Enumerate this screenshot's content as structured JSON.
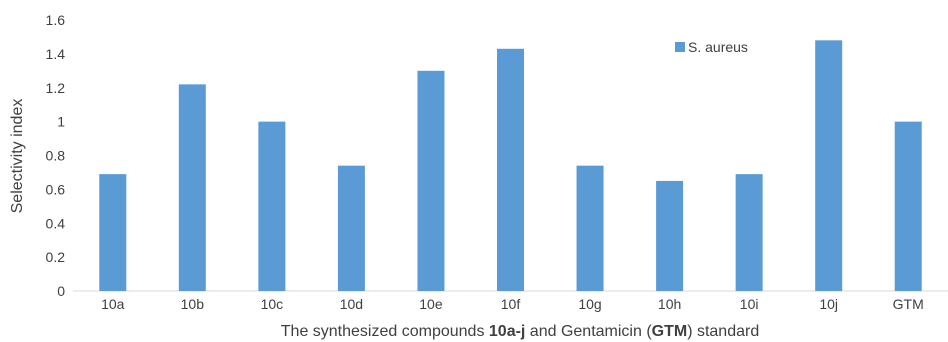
{
  "chart_data": {
    "type": "bar",
    "categories": [
      "10a",
      "10b",
      "10c",
      "10d",
      "10e",
      "10f",
      "10g",
      "10h",
      "10i",
      "10j",
      "GTM"
    ],
    "series": [
      {
        "name": "S. aureus",
        "values": [
          0.69,
          1.22,
          1.0,
          0.74,
          1.3,
          1.43,
          0.74,
          0.65,
          0.69,
          1.48,
          1.0
        ],
        "color": "#5b9bd5"
      }
    ],
    "title": "",
    "ylabel": "Selectivity index",
    "xlabel": {
      "part1": "The synthesized compounds ",
      "part2": "10a-j",
      "part3": " and Gentamicin (",
      "part4": "GTM",
      "part5": ") standard"
    },
    "ylim": [
      0,
      1.6
    ],
    "yticks": [
      "0",
      "0.2",
      "0.4",
      "0.6",
      "0.8",
      "1",
      "1.2",
      "1.4",
      "1.6"
    ],
    "grid": false,
    "legend_position": "top-right"
  }
}
